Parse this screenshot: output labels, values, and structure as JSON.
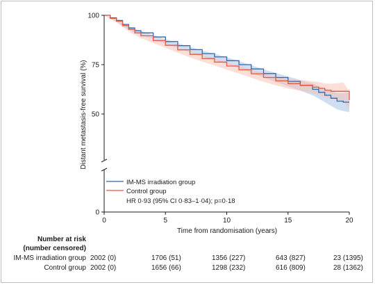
{
  "chart_data": {
    "type": "line",
    "title": "",
    "xlabel": "Time from randomisation (years)",
    "ylabel": "Distant metastasis-free survival (%)",
    "xlim": [
      0,
      20
    ],
    "ylim": [
      0,
      100
    ],
    "x_ticks": [
      0,
      5,
      10,
      15,
      20
    ],
    "y_ticks": [
      0,
      50,
      75,
      100
    ],
    "y_break": true,
    "grid": false,
    "legend_position": "bottom-left",
    "series": [
      {
        "name": "IM-MS irradiation group",
        "color": "#2f67b1",
        "band_color": "#a9c2e6",
        "x": [
          0,
          0.5,
          1,
          1.5,
          2,
          2.5,
          3,
          4,
          5,
          6,
          7,
          8,
          9,
          10,
          11,
          12,
          13,
          14,
          15,
          16,
          17,
          17.5,
          18,
          18.5,
          19,
          19.5,
          20
        ],
        "y": [
          100,
          98.7,
          97.4,
          95.4,
          93.6,
          92.2,
          91.1,
          89.0,
          86.7,
          84.6,
          82.6,
          80.6,
          78.9,
          77.0,
          75.0,
          72.8,
          70.5,
          68.5,
          66.5,
          64.5,
          62.5,
          61.0,
          59.5,
          58.0,
          56.5,
          56.0,
          56.0
        ],
        "ci_lower": [
          100,
          98.3,
          96.8,
          94.6,
          92.8,
          91.3,
          90.1,
          87.9,
          85.5,
          83.3,
          81.2,
          79.1,
          77.3,
          75.3,
          73.2,
          70.9,
          68.4,
          66.2,
          64.0,
          61.8,
          59.5,
          57.8,
          56.0,
          54.2,
          52.4,
          51.5,
          51.0
        ],
        "ci_upper": [
          100,
          99.1,
          98.0,
          96.2,
          94.4,
          93.1,
          92.1,
          90.1,
          87.9,
          85.9,
          84.0,
          82.1,
          80.5,
          78.7,
          76.8,
          74.7,
          72.6,
          70.8,
          69.0,
          67.2,
          65.5,
          64.2,
          63.0,
          61.8,
          60.6,
          60.5,
          61.0
        ]
      },
      {
        "name": "Control group",
        "color": "#e8573f",
        "band_color": "#f7bfb0",
        "x": [
          0,
          0.5,
          1,
          1.5,
          2,
          2.5,
          3,
          4,
          5,
          6,
          7,
          8,
          9,
          10,
          11,
          12,
          13,
          14,
          15,
          16,
          17,
          17.5,
          18,
          18.5,
          19,
          19.5,
          20
        ],
        "y": [
          100,
          98.5,
          97.0,
          94.8,
          92.9,
          91.1,
          89.6,
          87.2,
          84.8,
          82.5,
          80.2,
          78.1,
          76.3,
          74.3,
          72.4,
          70.4,
          68.5,
          66.8,
          65.4,
          64.6,
          63.6,
          63.0,
          62.0,
          61.5,
          61.5,
          61.5,
          57.0
        ],
        "ci_lower": [
          100,
          98.1,
          96.4,
          94.0,
          92.0,
          90.1,
          88.5,
          86.0,
          83.5,
          81.1,
          78.7,
          76.5,
          74.6,
          72.5,
          70.5,
          68.4,
          66.3,
          64.5,
          62.9,
          61.9,
          60.6,
          59.8,
          58.5,
          57.7,
          57.4,
          57.0,
          52.5
        ],
        "ci_upper": [
          100,
          98.9,
          97.6,
          95.6,
          93.8,
          92.1,
          90.7,
          88.4,
          86.1,
          83.9,
          81.7,
          79.7,
          78.0,
          76.1,
          74.3,
          72.4,
          70.7,
          69.1,
          67.9,
          67.3,
          66.6,
          66.2,
          65.5,
          65.3,
          65.6,
          66.0,
          61.5
        ]
      }
    ],
    "annotation": "HR 0·93 (95% CI 0·83–1·04); p=0·18"
  },
  "risk_table": {
    "title_line1": "Number at risk",
    "title_line2": "(number censored)",
    "rows": [
      {
        "label": "IM-MS irradiation group",
        "values": [
          "2002 (0)",
          "1706 (51)",
          "1356 (227)",
          "643 (827)",
          "23 (1395)"
        ]
      },
      {
        "label": "Control group",
        "values": [
          "2002 (0)",
          "1656 (66)",
          "1298 (232)",
          "616 (809)",
          "28 (1362)"
        ]
      }
    ]
  }
}
